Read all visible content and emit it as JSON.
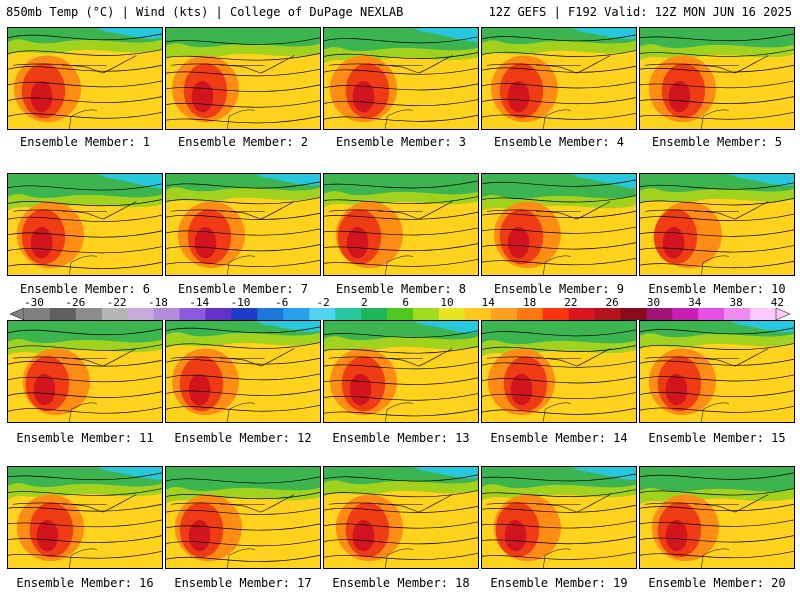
{
  "header": {
    "title_left": "850mb Temp (°C) | Wind (kts) | College of DuPage NEXLAB",
    "title_right": "12Z GEFS | F192 Valid: 12Z MON JUN 16 2025"
  },
  "members": [
    {
      "label": "Ensemble Member: 1"
    },
    {
      "label": "Ensemble Member: 2"
    },
    {
      "label": "Ensemble Member: 3"
    },
    {
      "label": "Ensemble Member: 4"
    },
    {
      "label": "Ensemble Member: 5"
    },
    {
      "label": "Ensemble Member: 6"
    },
    {
      "label": "Ensemble Member: 7"
    },
    {
      "label": "Ensemble Member: 8"
    },
    {
      "label": "Ensemble Member: 9"
    },
    {
      "label": "Ensemble Member: 10"
    },
    {
      "label": "Ensemble Member: 11"
    },
    {
      "label": "Ensemble Member: 12"
    },
    {
      "label": "Ensemble Member: 13"
    },
    {
      "label": "Ensemble Member: 14"
    },
    {
      "label": "Ensemble Member: 15"
    },
    {
      "label": "Ensemble Member: 16"
    },
    {
      "label": "Ensemble Member: 17"
    },
    {
      "label": "Ensemble Member: 18"
    },
    {
      "label": "Ensemble Member: 19"
    },
    {
      "label": "Ensemble Member: 20"
    }
  ],
  "colorbar": {
    "ticks": [
      "-30",
      "-26",
      "-22",
      "-18",
      "-14",
      "-10",
      "-6",
      "-2",
      "2",
      "6",
      "10",
      "14",
      "18",
      "22",
      "26",
      "30",
      "34",
      "38",
      "42"
    ],
    "colors": [
      "#7f7f7f",
      "#5f5f5f",
      "#8c8c8c",
      "#b4b4b4",
      "#c8aadc",
      "#b48cdc",
      "#8c5adc",
      "#6432c8",
      "#1e3cc8",
      "#1e78dc",
      "#28a0f0",
      "#50d2f0",
      "#28c8a0",
      "#1eb45a",
      "#50c81e",
      "#a0dc1e",
      "#e6e61e",
      "#ffc81e",
      "#ffa01e",
      "#ff7814",
      "#ff3214",
      "#dc141e",
      "#b4141e",
      "#8c0a1e",
      "#a01478",
      "#c81eb4",
      "#e650e6",
      "#f08cf0",
      "#ffc8ff"
    ]
  },
  "colors": {
    "cold": "#28c8dc",
    "cool": "#3cb450",
    "mild": "#a0d21e",
    "warm": "#ffd21e",
    "hot": "#ff8c14",
    "very_hot": "#f03c14",
    "extreme": "#d2141e"
  }
}
